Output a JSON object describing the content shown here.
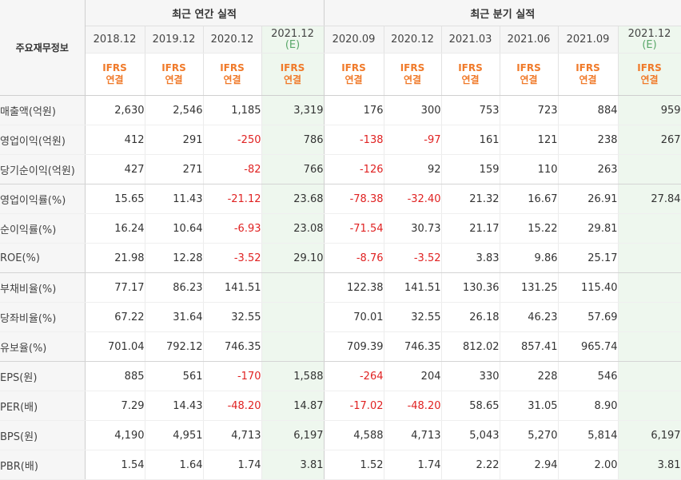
{
  "header": {
    "corner_label": "주요재무정보",
    "annual_group": "최근 연간 실적",
    "quarterly_group": "최근 분기 실적"
  },
  "periods": [
    {
      "label": "2018.12",
      "sub": "",
      "estimate": false
    },
    {
      "label": "2019.12",
      "sub": "",
      "estimate": false
    },
    {
      "label": "2020.12",
      "sub": "",
      "estimate": false
    },
    {
      "label": "2021.12",
      "sub": "(E)",
      "estimate": true
    },
    {
      "label": "2020.09",
      "sub": "",
      "estimate": false
    },
    {
      "label": "2020.12",
      "sub": "",
      "estimate": false
    },
    {
      "label": "2021.03",
      "sub": "",
      "estimate": false
    },
    {
      "label": "2021.06",
      "sub": "",
      "estimate": false
    },
    {
      "label": "2021.09",
      "sub": "",
      "estimate": false
    },
    {
      "label": "2021.12",
      "sub": "(E)",
      "estimate": true
    }
  ],
  "basis": {
    "line1": "IFRS",
    "line2": "연결"
  },
  "rows": [
    {
      "label": "매출액(억원)",
      "values": [
        "2,630",
        "2,546",
        "1,185",
        "3,319",
        "176",
        "300",
        "753",
        "723",
        "884",
        "959"
      ]
    },
    {
      "label": "영업이익(억원)",
      "values": [
        "412",
        "291",
        "-250",
        "786",
        "-138",
        "-97",
        "161",
        "121",
        "238",
        "267"
      ]
    },
    {
      "label": "당기순이익(억원)",
      "values": [
        "427",
        "271",
        "-82",
        "766",
        "-126",
        "92",
        "159",
        "110",
        "263",
        ""
      ]
    },
    {
      "label": "영업이익률(%)",
      "values": [
        "15.65",
        "11.43",
        "-21.12",
        "23.68",
        "-78.38",
        "-32.40",
        "21.32",
        "16.67",
        "26.91",
        "27.84"
      ]
    },
    {
      "label": "순이익률(%)",
      "values": [
        "16.24",
        "10.64",
        "-6.93",
        "23.08",
        "-71.54",
        "30.73",
        "21.17",
        "15.22",
        "29.81",
        ""
      ]
    },
    {
      "label": "ROE(%)",
      "values": [
        "21.98",
        "12.28",
        "-3.52",
        "29.10",
        "-8.76",
        "-3.52",
        "3.83",
        "9.86",
        "25.17",
        ""
      ]
    },
    {
      "label": "부채비율(%)",
      "values": [
        "77.17",
        "86.23",
        "141.51",
        "",
        "122.38",
        "141.51",
        "130.36",
        "131.25",
        "115.40",
        ""
      ]
    },
    {
      "label": "당좌비율(%)",
      "values": [
        "67.22",
        "31.64",
        "32.55",
        "",
        "70.01",
        "32.55",
        "26.18",
        "46.23",
        "57.69",
        ""
      ]
    },
    {
      "label": "유보율(%)",
      "values": [
        "701.04",
        "792.12",
        "746.35",
        "",
        "709.39",
        "746.35",
        "812.02",
        "857.41",
        "965.74",
        ""
      ]
    },
    {
      "label": "EPS(원)",
      "values": [
        "885",
        "561",
        "-170",
        "1,588",
        "-264",
        "204",
        "330",
        "228",
        "546",
        ""
      ]
    },
    {
      "label": "PER(배)",
      "values": [
        "7.29",
        "14.43",
        "-48.20",
        "14.87",
        "-17.02",
        "-48.20",
        "58.65",
        "31.05",
        "8.90",
        ""
      ]
    },
    {
      "label": "BPS(원)",
      "values": [
        "4,190",
        "4,951",
        "4,713",
        "6,197",
        "4,588",
        "4,713",
        "5,043",
        "5,270",
        "5,814",
        "6,197"
      ]
    },
    {
      "label": "PBR(배)",
      "values": [
        "1.54",
        "1.64",
        "1.74",
        "3.81",
        "1.52",
        "1.74",
        "2.22",
        "2.94",
        "2.00",
        "3.81"
      ]
    }
  ],
  "colors": {
    "negative": "#e02222",
    "basis_orange": "#f07a2a",
    "estimate_bg": "#eef7ee",
    "estimate_text": "#5aa86a"
  }
}
